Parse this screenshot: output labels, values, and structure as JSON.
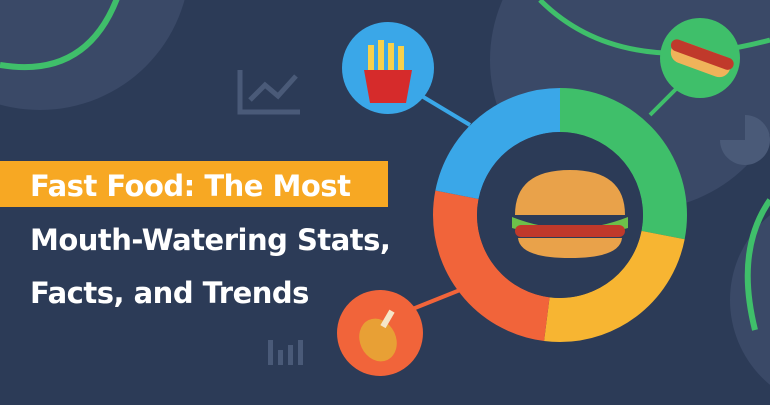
{
  "banner": {
    "title_lines": [
      "Fast Food: The Most",
      "Mouth-Watering Stats,",
      "Facts, and Trends"
    ]
  }
}
